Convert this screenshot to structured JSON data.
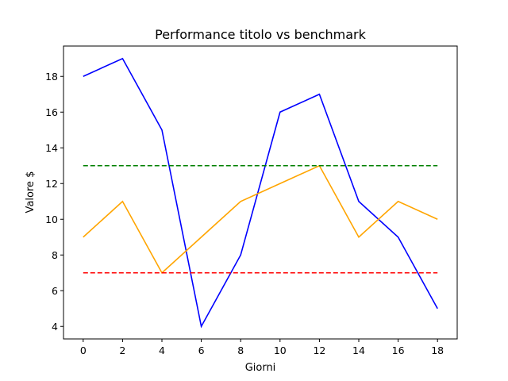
{
  "chart_data": {
    "type": "line",
    "title": "Performance titolo vs benchmark",
    "xlabel": "Giorni",
    "ylabel": "Valore $",
    "xlim": [
      -1,
      19
    ],
    "ylim": [
      3.3,
      19.7
    ],
    "xticks": [
      0,
      2,
      4,
      6,
      8,
      10,
      12,
      14,
      16,
      18
    ],
    "yticks": [
      4,
      6,
      8,
      10,
      12,
      14,
      16,
      18
    ],
    "grid": false,
    "series": [
      {
        "color": "#0000ff",
        "style": "solid",
        "x": [
          0,
          2,
          4,
          6,
          8,
          10,
          12,
          14,
          16,
          18
        ],
        "y": [
          18,
          19,
          15,
          4,
          8,
          16,
          17,
          11,
          9,
          5
        ]
      },
      {
        "color": "#ffa500",
        "style": "solid",
        "x": [
          0,
          2,
          4,
          6,
          8,
          10,
          12,
          14,
          16,
          18
        ],
        "y": [
          9,
          11,
          7,
          9,
          11,
          12,
          13,
          9,
          11,
          10
        ]
      },
      {
        "color": "#008000",
        "style": "dashed",
        "x": [
          0,
          18
        ],
        "y": [
          13,
          13
        ]
      },
      {
        "color": "#ff0000",
        "style": "dashed",
        "x": [
          0,
          18
        ],
        "y": [
          7,
          7
        ]
      }
    ]
  }
}
